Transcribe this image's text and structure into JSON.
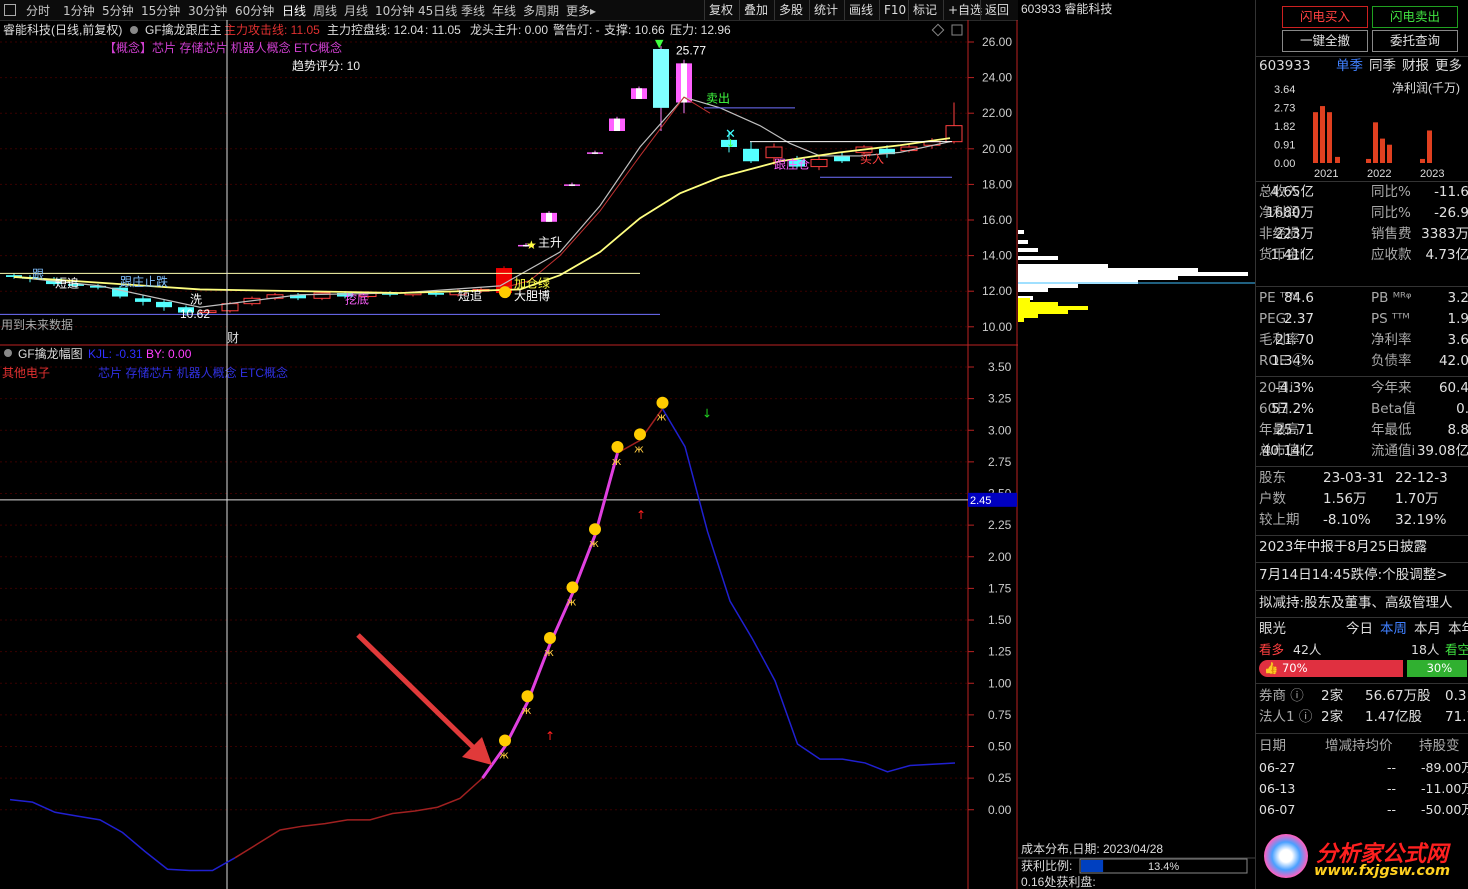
{
  "toolbar": {
    "periods": [
      "分时",
      "1分钟",
      "5分钟",
      "15分钟",
      "30分钟",
      "60分钟",
      "日线",
      "周线",
      "月线",
      "10分钟",
      "45日线",
      "季线",
      "年线",
      "多周期",
      "更多▸"
    ],
    "right": [
      "复权",
      "叠加",
      "多股",
      "统计",
      "画线",
      "F10",
      "标记",
      "+自选",
      "返回"
    ]
  },
  "main": {
    "stock_title": "睿能科技(日线,前复权)",
    "indicator_name": "GF擒龙跟庄主",
    "attack_line": "主力攻击线: 11.05",
    "control_line": "主力控盘线: 12.04",
    "val2": ": 11.05",
    "dragon": "龙头主升: 0.00",
    "warn_label": "警告灯: -",
    "support": "支撑: 10.66",
    "pressure": "压力: 12.96",
    "concept": "【概念】芯片 存储芯片 机器人概念 ETC概念",
    "trend_score": "趋势评分:  10",
    "future_data": "用到未来数据",
    "high_label": "25.77",
    "low_label": "10.62",
    "cai": "财",
    "labels": {
      "sell": "卖出",
      "main_rise": "主升",
      "bold_bet": "大胆博",
      "add_pos": "加仓绿",
      "follow_chase": "短追",
      "follow_chase2": "短追",
      "dig_bottom": "挖底",
      "take_pos": "跟庄抢入",
      "bounce": "跟庄止跌",
      "back_in": "买入",
      "tuo": "跟庄仓",
      "wash": "洗",
      "edge": "跟"
    },
    "yaxis": [
      "26.00",
      "24.00",
      "22.00",
      "20.00",
      "18.00",
      "16.00",
      "14.00",
      "12.00",
      "10.00"
    ]
  },
  "sub": {
    "name": "GF擒龙幅图",
    "kjl": "KJL: -0.31",
    "by": "BY: 0.00",
    "sector": "其他电子",
    "concept": "芯片 存储芯片 机器人概念 ETC概念",
    "yaxis": [
      "3.50",
      "3.25",
      "3.00",
      "2.75",
      "2.50",
      "2.25",
      "2.00",
      "1.75",
      "1.50",
      "1.25",
      "1.00",
      "0.75",
      "0.50",
      "0.25",
      "0.00"
    ],
    "cursor_value": "2.45"
  },
  "chart_data": {
    "type": "line",
    "title": "GF擒龙幅图",
    "x": [
      1,
      2,
      3,
      4,
      5,
      6,
      7,
      8,
      9,
      10,
      11,
      12,
      13,
      14,
      15,
      16,
      17,
      18,
      19,
      20,
      21,
      22,
      23,
      24,
      25,
      26,
      27,
      28,
      29,
      30,
      31,
      32,
      33,
      34,
      35,
      36,
      37,
      38,
      39,
      40,
      41,
      42,
      43
    ],
    "series": [
      {
        "name": "KJL",
        "values": [
          0.08,
          0.06,
          -0.02,
          -0.05,
          -0.08,
          -0.18,
          -0.33,
          -0.47,
          -0.48,
          -0.48,
          -0.38,
          -0.27,
          -0.16,
          -0.13,
          -0.11,
          -0.08,
          -0.08,
          -0.03,
          -0.01,
          0.02,
          0.09,
          0.25,
          0.5,
          0.85,
          1.31,
          1.71,
          2.17,
          2.82,
          2.92,
          3.17,
          2.87,
          2.2,
          1.65,
          1.35,
          1.02,
          0.52,
          0.4,
          0.4,
          0.37,
          0.3,
          0.35,
          0.36,
          0.37
        ]
      }
    ],
    "ylim": [
      -0.55,
      3.6
    ]
  },
  "chip": {
    "stock": "603933 睿能科技",
    "date": "成本分布,日期: 2023/04/28",
    "profit_label": "获利比例:",
    "profit_pct": "13.4%",
    "profit_ratio": 0.134,
    "bottom": "0.16处获利盘:"
  },
  "right": {
    "btn_flash_buy": "闪电买入",
    "btn_flash_sell": "闪电卖出",
    "btn_cancel_all": "一键全撤",
    "btn_order_query": "委托查询",
    "code": "603933",
    "tabs": [
      "单季",
      "同季",
      "财报",
      "更多"
    ],
    "profit_title": "净利润(千万)",
    "bar_y": [
      "3.64",
      "2.73",
      "1.82",
      "0.91",
      "0.00"
    ],
    "years": [
      "2021",
      "2022",
      "2023"
    ],
    "bar_values": [
      2.5,
      2.8,
      2.5,
      0.3,
      0.2,
      2.0,
      1.2,
      0.9,
      0.2,
      1.6
    ],
    "fin": [
      [
        "总收入",
        "4.65亿",
        "同比%",
        "-11.6"
      ],
      [
        "净利润",
        "1680万",
        "同比%",
        "-26.9"
      ],
      [
        "非经损",
        "223万",
        "销售费",
        "3383万"
      ],
      [
        "货币金i",
        "1.41亿",
        "应收款",
        "4.73亿"
      ]
    ],
    "val": [
      [
        "PE ᵀᵀᴹ",
        "84.6",
        "PB ᴹᴿᵠ",
        "3.2"
      ],
      [
        "PEGⁱ",
        "2.37",
        "PS ᵀᵀᴹ",
        "1.9"
      ],
      [
        "毛利率",
        "21.70",
        "净利率",
        "3.6"
      ],
      [
        "ROE ⓘ",
        "1.34%",
        "负债率",
        "42.0"
      ]
    ],
    "perf": [
      [
        "20日i",
        "-4.3%",
        "今年来",
        "60.4"
      ],
      [
        "60日",
        "57.2%",
        "Beta值",
        "0."
      ],
      [
        "年最高",
        "25.71",
        "年最低",
        "8.8"
      ],
      [
        "总市值i",
        "40.14亿",
        "流通值i",
        "39.08亿"
      ]
    ],
    "holders": [
      [
        "股东",
        "23-03-31",
        "22-12-3"
      ],
      [
        "户数",
        "1.56万",
        "1.70万"
      ],
      [
        "较上期",
        "-8.10%",
        "32.19%"
      ]
    ],
    "notice1": "2023年中报于8月25日披露",
    "notice2": "7月14日14:45跌停:个股调整>",
    "notice3": "拟减持:股东及董事、高级管理人",
    "eye": "眼光",
    "eye_tabs": [
      "今日",
      "本周",
      "本月",
      "本年"
    ],
    "bull": "看多",
    "bull_n": "42人",
    "bear_n": "18人",
    "bear": "看空",
    "bull_pct": "70%",
    "bear_pct": "30%",
    "bull_ratio": 0.7,
    "inst": [
      [
        "券商 ⓘ",
        "2家",
        "56.67万股",
        "0.3"
      ],
      [
        "法人1 ⓘ",
        "2家",
        "1.47亿股",
        "71.7"
      ]
    ],
    "tbl_head": [
      "日期",
      "增减持均价",
      "持股变"
    ],
    "tbl_rows": [
      [
        "06-27",
        "--",
        "-89.00万"
      ],
      [
        "06-13",
        "--",
        "-11.00万"
      ],
      [
        "06-07",
        "--",
        "-50.00万"
      ]
    ],
    "watermark_cn": "分析家公式网",
    "watermark_url": "www.fxjgsw.com"
  }
}
